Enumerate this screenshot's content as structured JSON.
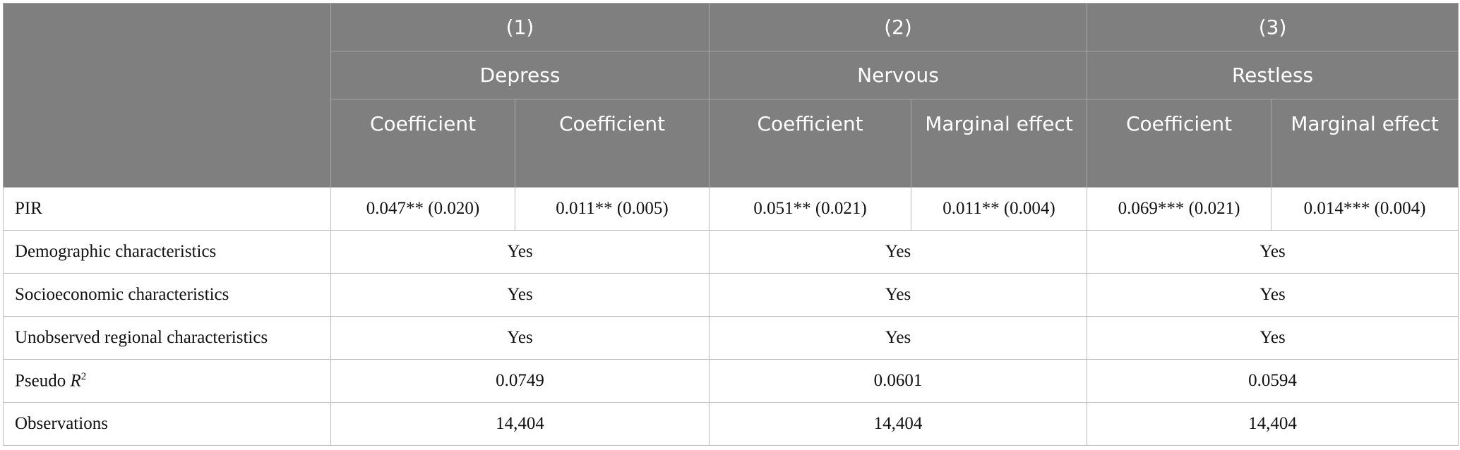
{
  "table": {
    "header": {
      "models": [
        "(1)",
        "(2)",
        "(3)"
      ],
      "outcomes": [
        "Depress",
        "Nervous",
        "Restless"
      ],
      "columns": [
        "Coefficient",
        "Coefficient",
        "Coefficient",
        "Marginal effect",
        "Coefficient",
        "Marginal effect"
      ]
    },
    "rows": [
      [
        "PIR",
        "0.047** (0.020)",
        "0.011** (0.005)",
        "0.051** (0.021)",
        "0.011** (0.004)",
        "0.069*** (0.021)",
        "0.014*** (0.004)"
      ],
      [
        "Demographic characteristics",
        "Yes",
        "Yes",
        "Yes"
      ],
      [
        "Socioeconomic characteristics",
        "Yes",
        "Yes",
        "Yes"
      ],
      [
        "Unobserved regional characteristics",
        "Yes",
        "Yes",
        "Yes"
      ],
      [
        {
          "text": "Pseudo ",
          "italic": "R",
          "sup": "2"
        },
        "0.0749",
        "0.0601",
        "0.0594"
      ],
      [
        "Observations",
        "14,404",
        "14,404",
        "14,404"
      ]
    ]
  }
}
